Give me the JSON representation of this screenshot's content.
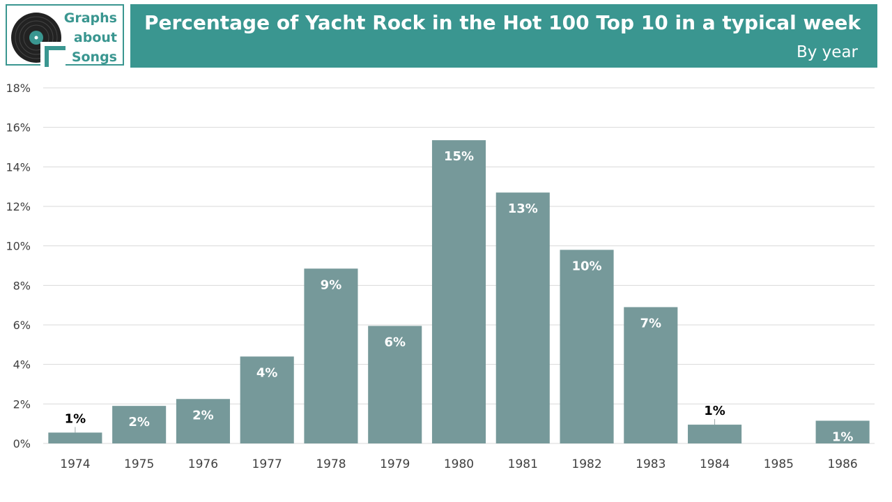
{
  "logo": {
    "lines": [
      "Graphs",
      "about",
      "Songs"
    ],
    "icon": "vinyl-record-icon"
  },
  "header": {
    "title": "Percentage of Yacht Rock in the Hot 100 Top 10 in a typical week",
    "subtitle": "By year"
  },
  "colors": {
    "accent": "#3a9690",
    "bar": "#76999a",
    "grid": "#d9d9d9",
    "axis_text": "#404040"
  },
  "chart_data": {
    "type": "bar",
    "title": "Percentage of Yacht Rock in the Hot 100 Top 10 in a typical week",
    "subtitle": "By year",
    "categories": [
      "1974",
      "1975",
      "1976",
      "1977",
      "1978",
      "1979",
      "1980",
      "1981",
      "1982",
      "1983",
      "1984",
      "1985",
      "1986"
    ],
    "values": [
      0.55,
      1.9,
      2.25,
      4.4,
      8.85,
      5.95,
      15.35,
      12.7,
      9.8,
      6.9,
      0.95,
      0,
      1.15
    ],
    "data_labels": [
      "1%",
      "2%",
      "2%",
      "4%",
      "9%",
      "6%",
      "15%",
      "13%",
      "10%",
      "7%",
      "1%",
      "",
      "1%"
    ],
    "ylim": [
      0,
      18
    ],
    "yticks": [
      0,
      2,
      4,
      6,
      8,
      10,
      12,
      14,
      16,
      18
    ],
    "ytick_labels": [
      "0%",
      "2%",
      "4%",
      "6%",
      "8%",
      "10%",
      "12%",
      "14%",
      "16%",
      "18%"
    ],
    "xlabel": "",
    "ylabel": "",
    "grid": true,
    "legend": "none"
  }
}
